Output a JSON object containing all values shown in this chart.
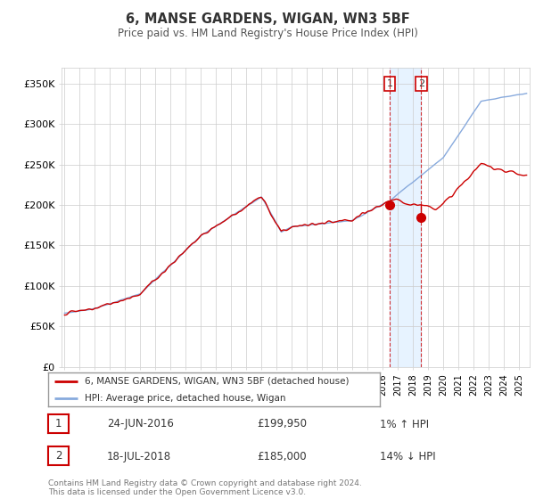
{
  "title": "6, MANSE GARDENS, WIGAN, WN3 5BF",
  "subtitle": "Price paid vs. HM Land Registry's House Price Index (HPI)",
  "ylabel_ticks": [
    "£0",
    "£50K",
    "£100K",
    "£150K",
    "£200K",
    "£250K",
    "£300K",
    "£350K"
  ],
  "ytick_values": [
    0,
    50000,
    100000,
    150000,
    200000,
    250000,
    300000,
    350000
  ],
  "ylim": [
    0,
    370000
  ],
  "legend_line1": "6, MANSE GARDENS, WIGAN, WN3 5BF (detached house)",
  "legend_line2": "HPI: Average price, detached house, Wigan",
  "transaction1_date": "24-JUN-2016",
  "transaction1_price": "£199,950",
  "transaction1_hpi": "1% ↑ HPI",
  "transaction2_date": "18-JUL-2018",
  "transaction2_price": "£185,000",
  "transaction2_hpi": "14% ↓ HPI",
  "footer": "Contains HM Land Registry data © Crown copyright and database right 2024.\nThis data is licensed under the Open Government Licence v3.0.",
  "red_color": "#cc0000",
  "blue_color": "#88aadd",
  "shade_color": "#ddeeff",
  "background_color": "#ffffff",
  "grid_color": "#cccccc",
  "t1_year": 2016.46,
  "t2_year": 2018.54,
  "t1_price": 199950,
  "t2_price": 185000
}
